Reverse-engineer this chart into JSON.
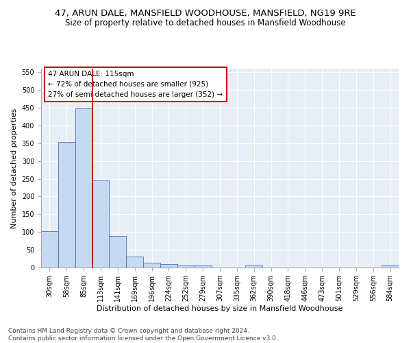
{
  "title": "47, ARUN DALE, MANSFIELD WOODHOUSE, MANSFIELD, NG19 9RE",
  "subtitle": "Size of property relative to detached houses in Mansfield Woodhouse",
  "xlabel": "Distribution of detached houses by size in Mansfield Woodhouse",
  "ylabel": "Number of detached properties",
  "footnote": "Contains HM Land Registry data © Crown copyright and database right 2024.\nContains public sector information licensed under the Open Government Licence v3.0.",
  "bin_labels": [
    "30sqm",
    "58sqm",
    "85sqm",
    "113sqm",
    "141sqm",
    "169sqm",
    "196sqm",
    "224sqm",
    "252sqm",
    "279sqm",
    "307sqm",
    "335sqm",
    "362sqm",
    "390sqm",
    "418sqm",
    "446sqm",
    "473sqm",
    "501sqm",
    "529sqm",
    "556sqm",
    "584sqm"
  ],
  "bar_heights": [
    103,
    354,
    448,
    246,
    88,
    30,
    14,
    9,
    6,
    5,
    0,
    0,
    6,
    0,
    0,
    0,
    0,
    0,
    0,
    0,
    5
  ],
  "bar_color": "#c6d9f0",
  "bar_edge_color": "#4472c4",
  "vline_x": 2.5,
  "vline_color": "#cc0000",
  "annotation_text": "47 ARUN DALE: 115sqm\n← 72% of detached houses are smaller (925)\n27% of semi-detached houses are larger (352) →",
  "annotation_box_color": "#ffffff",
  "annotation_box_edge": "#cc0000",
  "ylim": [
    0,
    560
  ],
  "yticks": [
    0,
    50,
    100,
    150,
    200,
    250,
    300,
    350,
    400,
    450,
    500,
    550
  ],
  "background_color": "#e8eef6",
  "grid_color": "#ffffff",
  "title_fontsize": 9.5,
  "subtitle_fontsize": 8.5,
  "axis_label_fontsize": 8,
  "tick_fontsize": 7,
  "annotation_fontsize": 7.5,
  "footnote_fontsize": 6.5
}
